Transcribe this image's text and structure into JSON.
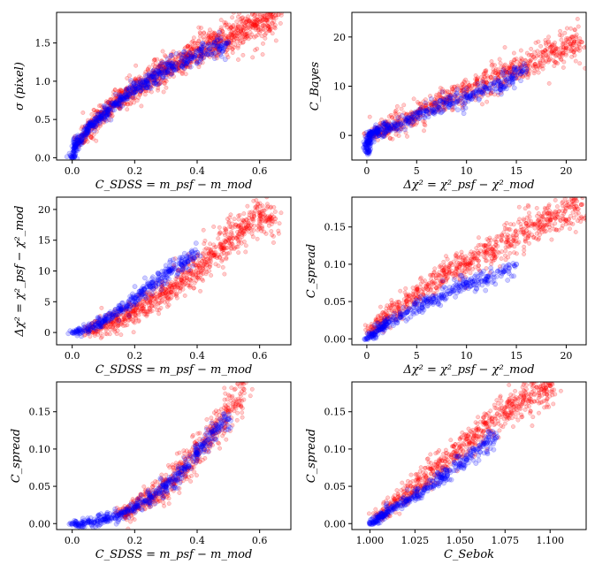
{
  "figure": {
    "rows": 3,
    "cols": 2
  },
  "colors": {
    "red": "#ff0000",
    "blue": "#0000ff"
  },
  "chart_data": [
    {
      "type": "scatter",
      "xlabel": "C_SDSS = m_psf − m_mod",
      "ylabel": "σ (pixel)",
      "xlim": [
        -0.05,
        0.7
      ],
      "ylim": [
        -0.03,
        1.9
      ],
      "xticks": [
        0.0,
        0.2,
        0.4,
        0.6
      ],
      "xtick_labels": [
        "0.0",
        "0.2",
        "0.4",
        "0.6"
      ],
      "yticks": [
        0.0,
        0.5,
        1.0,
        1.5
      ],
      "ytick_labels": [
        "0.0",
        "0.5",
        "1.0",
        "1.5"
      ],
      "series": [
        {
          "name": "red",
          "color": "#ff0000",
          "points": [
            [
              0.02,
              0.18
            ],
            [
              0.06,
              0.42
            ],
            [
              0.1,
              0.58
            ],
            [
              0.14,
              0.72
            ],
            [
              0.18,
              0.84
            ],
            [
              0.22,
              0.95
            ],
            [
              0.26,
              1.05
            ],
            [
              0.3,
              1.15
            ],
            [
              0.34,
              1.24
            ],
            [
              0.38,
              1.33
            ],
            [
              0.42,
              1.42
            ],
            [
              0.46,
              1.5
            ],
            [
              0.5,
              1.58
            ],
            [
              0.54,
              1.66
            ],
            [
              0.58,
              1.73
            ],
            [
              0.62,
              1.8
            ],
            [
              0.66,
              1.87
            ]
          ]
        },
        {
          "name": "blue",
          "color": "#0000ff",
          "points": [
            [
              0.0,
              0.0
            ],
            [
              0.01,
              0.15
            ],
            [
              0.03,
              0.28
            ],
            [
              0.06,
              0.42
            ],
            [
              0.09,
              0.53
            ],
            [
              0.12,
              0.64
            ],
            [
              0.16,
              0.78
            ],
            [
              0.2,
              0.9
            ],
            [
              0.24,
              1.0
            ],
            [
              0.28,
              1.1
            ],
            [
              0.32,
              1.19
            ],
            [
              0.38,
              1.3
            ],
            [
              0.44,
              1.42
            ],
            [
              0.5,
              1.5
            ]
          ]
        }
      ]
    },
    {
      "type": "scatter",
      "xlabel": "Δχ² = χ²_psf − χ²_mod",
      "ylabel": "C_Bayes",
      "xlim": [
        -1.5,
        22
      ],
      "ylim": [
        -5,
        25
      ],
      "xticks": [
        0,
        5,
        10,
        15,
        20
      ],
      "xtick_labels": [
        "0",
        "5",
        "10",
        "15",
        "20"
      ],
      "yticks": [
        0,
        10,
        20
      ],
      "ytick_labels": [
        "0",
        "10",
        "20"
      ],
      "series": [
        {
          "name": "red",
          "color": "#ff0000",
          "points": [
            [
              0.5,
              0.2
            ],
            [
              2,
              1.5
            ],
            [
              4,
              3.2
            ],
            [
              6,
              5.5
            ],
            [
              8,
              7.3
            ],
            [
              10,
              9
            ],
            [
              12,
              10.8
            ],
            [
              14,
              12.8
            ],
            [
              16,
              14.5
            ],
            [
              18,
              16.2
            ],
            [
              20,
              18
            ],
            [
              21.5,
              19
            ]
          ]
        },
        {
          "name": "blue",
          "color": "#0000ff",
          "points": [
            [
              0,
              -3.5
            ],
            [
              0.1,
              -1.5
            ],
            [
              0.3,
              0
            ],
            [
              1,
              0.8
            ],
            [
              2,
              1.5
            ],
            [
              4,
              3
            ],
            [
              6,
              4.8
            ],
            [
              8,
              6.5
            ],
            [
              10,
              8
            ],
            [
              12,
              9.5
            ],
            [
              14,
              11.2
            ],
            [
              16,
              13.5
            ]
          ]
        }
      ]
    },
    {
      "type": "scatter",
      "xlabel": "C_SDSS = m_psf − m_mod",
      "ylabel": "Δχ² = χ²_psf − χ²_mod",
      "xlim": [
        -0.05,
        0.7
      ],
      "ylim": [
        -2,
        22
      ],
      "xticks": [
        0.0,
        0.2,
        0.4,
        0.6
      ],
      "xtick_labels": [
        "0.0",
        "0.2",
        "0.4",
        "0.6"
      ],
      "yticks": [
        0,
        5,
        10,
        15,
        20
      ],
      "ytick_labels": [
        "0",
        "5",
        "10",
        "15",
        "20"
      ],
      "series": [
        {
          "name": "red",
          "color": "#ff0000",
          "points": [
            [
              0.05,
              0.3
            ],
            [
              0.1,
              1
            ],
            [
              0.15,
              2
            ],
            [
              0.2,
              3.5
            ],
            [
              0.25,
              5
            ],
            [
              0.3,
              6.5
            ],
            [
              0.35,
              8.5
            ],
            [
              0.4,
              10.5
            ],
            [
              0.45,
              12.5
            ],
            [
              0.5,
              15
            ],
            [
              0.55,
              17
            ],
            [
              0.6,
              19
            ],
            [
              0.65,
              18.5
            ]
          ]
        },
        {
          "name": "blue",
          "color": "#0000ff",
          "points": [
            [
              0.0,
              0.0
            ],
            [
              0.05,
              0.6
            ],
            [
              0.1,
              1.8
            ],
            [
              0.15,
              3.5
            ],
            [
              0.2,
              5.5
            ],
            [
              0.25,
              7.5
            ],
            [
              0.3,
              9.5
            ],
            [
              0.35,
              11
            ],
            [
              0.4,
              13
            ]
          ]
        }
      ]
    },
    {
      "type": "scatter",
      "xlabel": "Δχ² = χ²_psf − χ²_mod",
      "ylabel": "C_spread",
      "xlim": [
        -1.5,
        22
      ],
      "ylim": [
        -0.008,
        0.19
      ],
      "xticks": [
        0,
        5,
        10,
        15,
        20
      ],
      "xtick_labels": [
        "0",
        "5",
        "10",
        "15",
        "20"
      ],
      "yticks": [
        0.0,
        0.05,
        0.1,
        0.15
      ],
      "ytick_labels": [
        "0.00",
        "0.05",
        "0.10",
        "0.15"
      ],
      "series": [
        {
          "name": "red",
          "color": "#ff0000",
          "points": [
            [
              0.5,
              0.01
            ],
            [
              2,
              0.03
            ],
            [
              4,
              0.05
            ],
            [
              6,
              0.07
            ],
            [
              8,
              0.09
            ],
            [
              10,
              0.1
            ],
            [
              12,
              0.115
            ],
            [
              14,
              0.13
            ],
            [
              16,
              0.145
            ],
            [
              18,
              0.16
            ],
            [
              20,
              0.175
            ],
            [
              21.5,
              0.18
            ]
          ]
        },
        {
          "name": "blue",
          "color": "#0000ff",
          "points": [
            [
              0,
              0.0
            ],
            [
              1,
              0.01
            ],
            [
              2,
              0.02
            ],
            [
              4,
              0.035
            ],
            [
              6,
              0.05
            ],
            [
              8,
              0.06
            ],
            [
              10,
              0.075
            ],
            [
              12,
              0.08
            ],
            [
              15,
              0.1
            ]
          ]
        }
      ]
    },
    {
      "type": "scatter",
      "xlabel": "C_SDSS = m_psf − m_mod",
      "ylabel": "C_spread",
      "xlim": [
        -0.05,
        0.7
      ],
      "ylim": [
        -0.008,
        0.19
      ],
      "xticks": [
        0.0,
        0.2,
        0.4,
        0.6
      ],
      "xtick_labels": [
        "0.0",
        "0.2",
        "0.4",
        "0.6"
      ],
      "yticks": [
        0.0,
        0.05,
        0.1,
        0.15
      ],
      "ytick_labels": [
        "0.00",
        "0.05",
        "0.10",
        "0.15"
      ],
      "series": [
        {
          "name": "red",
          "color": "#ff0000",
          "points": [
            [
              0.15,
              0.012
            ],
            [
              0.2,
              0.022
            ],
            [
              0.25,
              0.035
            ],
            [
              0.3,
              0.05
            ],
            [
              0.35,
              0.07
            ],
            [
              0.4,
              0.095
            ],
            [
              0.45,
              0.12
            ],
            [
              0.5,
              0.15
            ],
            [
              0.55,
              0.18
            ]
          ]
        },
        {
          "name": "blue",
          "color": "#0000ff",
          "points": [
            [
              0.0,
              0.0
            ],
            [
              0.05,
              0.001
            ],
            [
              0.1,
              0.005
            ],
            [
              0.15,
              0.012
            ],
            [
              0.2,
              0.022
            ],
            [
              0.25,
              0.035
            ],
            [
              0.3,
              0.05
            ],
            [
              0.35,
              0.07
            ],
            [
              0.4,
              0.095
            ],
            [
              0.45,
              0.12
            ],
            [
              0.5,
              0.14
            ]
          ]
        }
      ]
    },
    {
      "type": "scatter",
      "xlabel": "C_Sebok",
      "ylabel": "C_spread",
      "xlim": [
        0.99,
        1.12
      ],
      "ylim": [
        -0.008,
        0.19
      ],
      "xticks": [
        1.0,
        1.025,
        1.05,
        1.075,
        1.1
      ],
      "xtick_labels": [
        "1.000",
        "1.025",
        "1.050",
        "1.075",
        "1.100"
      ],
      "yticks": [
        0.0,
        0.05,
        0.1,
        0.15
      ],
      "ytick_labels": [
        "0.00",
        "0.05",
        "0.10",
        "0.15"
      ],
      "series": [
        {
          "name": "red",
          "color": "#ff0000",
          "points": [
            [
              1.005,
              0.01
            ],
            [
              1.015,
              0.03
            ],
            [
              1.025,
              0.05
            ],
            [
              1.035,
              0.07
            ],
            [
              1.045,
              0.09
            ],
            [
              1.055,
              0.11
            ],
            [
              1.065,
              0.13
            ],
            [
              1.075,
              0.15
            ],
            [
              1.085,
              0.165
            ],
            [
              1.095,
              0.18
            ],
            [
              1.1,
              0.185
            ]
          ]
        },
        {
          "name": "blue",
          "color": "#0000ff",
          "points": [
            [
              1.0,
              0.0
            ],
            [
              1.005,
              0.008
            ],
            [
              1.01,
              0.016
            ],
            [
              1.02,
              0.03
            ],
            [
              1.03,
              0.045
            ],
            [
              1.04,
              0.062
            ],
            [
              1.05,
              0.08
            ],
            [
              1.06,
              0.1
            ],
            [
              1.07,
              0.115
            ]
          ]
        }
      ]
    }
  ]
}
